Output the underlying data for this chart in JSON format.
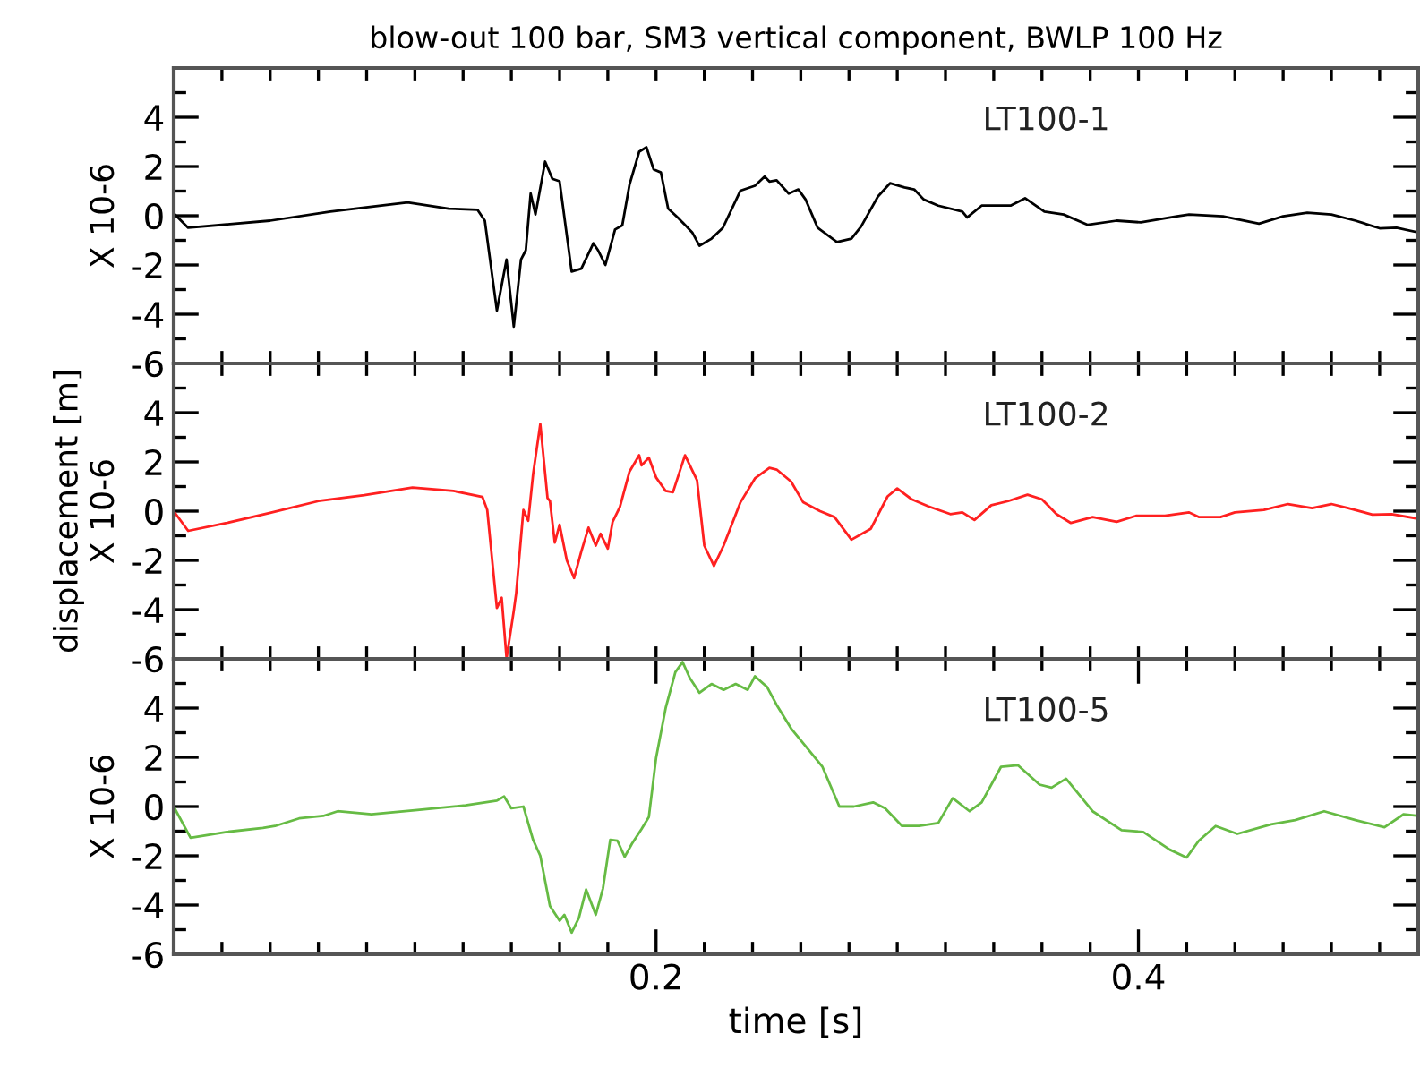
{
  "chart_data": [
    {
      "type": "line",
      "title": "blow-out 100 bar, SM3 vertical component, BWLP 100 Hz",
      "ylabel": "X 10-6",
      "tick_labels": "y",
      "xlim": [
        0,
        0.516
      ],
      "ylim": [
        -6,
        6
      ],
      "xticks": [
        {
          "value": 0.02,
          "label": null
        },
        {
          "value": 0.04,
          "label": null
        },
        {
          "value": 0.06,
          "label": null
        },
        {
          "value": 0.08,
          "label": null
        },
        {
          "value": 0.1,
          "label": null
        },
        {
          "value": 0.12,
          "label": null
        },
        {
          "value": 0.14,
          "label": null
        },
        {
          "value": 0.16,
          "label": null
        },
        {
          "value": 0.18,
          "label": null
        },
        {
          "value": 0.2,
          "label": null
        },
        {
          "value": 0.22,
          "label": null
        },
        {
          "value": 0.24,
          "label": null
        },
        {
          "value": 0.26,
          "label": null
        },
        {
          "value": 0.28,
          "label": null
        },
        {
          "value": 0.3,
          "label": null
        },
        {
          "value": 0.32,
          "label": null
        },
        {
          "value": 0.34,
          "label": null
        },
        {
          "value": 0.36,
          "label": null
        },
        {
          "value": 0.38,
          "label": null
        },
        {
          "value": 0.4,
          "label": null
        },
        {
          "value": 0.42,
          "label": null
        },
        {
          "value": 0.44,
          "label": null
        },
        {
          "value": 0.46,
          "label": null
        },
        {
          "value": 0.48,
          "label": null
        },
        {
          "value": 0.5,
          "label": null
        }
      ],
      "yticks": [
        -6,
        {
          "value": -5,
          "label": null
        },
        -4,
        {
          "value": -3,
          "label": null
        },
        -2,
        {
          "value": -1,
          "label": null
        },
        0,
        {
          "value": 1,
          "label": null
        },
        2,
        {
          "value": 3,
          "label": null
        },
        4,
        {
          "value": 5,
          "label": null
        }
      ],
      "series": [
        {
          "name": "LT100-1",
          "color": "#000000",
          "x": [
            0,
            0.006,
            0.04,
            0.065,
            0.097,
            0.114,
            0.126,
            0.129,
            0.134,
            0.138,
            0.141,
            0.144,
            0.146,
            0.148,
            0.15,
            0.154,
            0.157,
            0.16,
            0.165,
            0.169,
            0.174,
            0.176,
            0.179,
            0.183,
            0.186,
            0.189,
            0.193,
            0.196,
            0.199,
            0.202,
            0.205,
            0.209,
            0.215,
            0.218,
            0.223,
            0.2277,
            0.235,
            0.241,
            0.245,
            0.247,
            0.25,
            0.255,
            0.259,
            0.262,
            0.267,
            0.275,
            0.281,
            0.285,
            0.292,
            0.297,
            0.303,
            0.307,
            0.311,
            0.317,
            0.327,
            0.329,
            0.335,
            0.347,
            0.353,
            0.361,
            0.369,
            0.379,
            0.391,
            0.401,
            0.416,
            0.421,
            0.435,
            0.45,
            0.46,
            0.47,
            0.48,
            0.49,
            0.5,
            0.507,
            0.516
          ],
          "values": [
            0.1,
            -0.49,
            -0.2,
            0.17,
            0.54,
            0.29,
            0.24,
            -0.2,
            -3.85,
            -1.78,
            -4.5,
            -1.78,
            -1.4,
            0.9,
            0.05,
            2.2,
            1.5,
            1.4,
            -2.27,
            -2.15,
            -1.12,
            -1.41,
            -2.0,
            -0.56,
            -0.39,
            1.27,
            2.6,
            2.78,
            1.88,
            1.76,
            0.29,
            -0.07,
            -0.68,
            -1.22,
            -0.93,
            -0.49,
            1.02,
            1.22,
            1.59,
            1.39,
            1.44,
            0.9,
            1.07,
            0.66,
            -0.49,
            -1.07,
            -0.93,
            -0.44,
            0.78,
            1.32,
            1.15,
            1.07,
            0.66,
            0.41,
            0.17,
            -0.07,
            0.41,
            0.41,
            0.71,
            0.17,
            0.05,
            -0.37,
            -0.2,
            -0.27,
            -0.02,
            0.05,
            -0.02,
            -0.32,
            -0.02,
            0.12,
            0.05,
            -0.2,
            -0.51,
            -0.49,
            -0.68
          ]
        }
      ]
    },
    {
      "type": "line",
      "ylabel": "displacement [m]\nX 10-6",
      "tick_labels": "y",
      "xlim": [
        0,
        0.516
      ],
      "ylim": [
        -6,
        6
      ],
      "xticks": [
        {
          "value": 0.02,
          "label": null
        },
        {
          "value": 0.04,
          "label": null
        },
        {
          "value": 0.06,
          "label": null
        },
        {
          "value": 0.08,
          "label": null
        },
        {
          "value": 0.1,
          "label": null
        },
        {
          "value": 0.12,
          "label": null
        },
        {
          "value": 0.14,
          "label": null
        },
        {
          "value": 0.16,
          "label": null
        },
        {
          "value": 0.18,
          "label": null
        },
        {
          "value": 0.2,
          "label": null
        },
        {
          "value": 0.22,
          "label": null
        },
        {
          "value": 0.24,
          "label": null
        },
        {
          "value": 0.26,
          "label": null
        },
        {
          "value": 0.28,
          "label": null
        },
        {
          "value": 0.3,
          "label": null
        },
        {
          "value": 0.32,
          "label": null
        },
        {
          "value": 0.34,
          "label": null
        },
        {
          "value": 0.36,
          "label": null
        },
        {
          "value": 0.38,
          "label": null
        },
        {
          "value": 0.4,
          "label": null
        },
        {
          "value": 0.42,
          "label": null
        },
        {
          "value": 0.44,
          "label": null
        },
        {
          "value": 0.46,
          "label": null
        },
        {
          "value": 0.48,
          "label": null
        },
        {
          "value": 0.5,
          "label": null
        }
      ],
      "yticks": [
        -6,
        {
          "value": -5,
          "label": null
        },
        -4,
        {
          "value": -3,
          "label": null
        },
        -2,
        {
          "value": -1,
          "label": null
        },
        0,
        {
          "value": 1,
          "label": null
        },
        2,
        {
          "value": 3,
          "label": null
        },
        4,
        {
          "value": 5,
          "label": null
        }
      ],
      "series": [
        {
          "name": "LT100-2",
          "color": "#ff2020",
          "x": [
            0,
            0.006,
            0.022,
            0.04,
            0.06,
            0.079,
            0.099,
            0.116,
            0.128,
            0.13,
            0.134,
            0.136,
            0.138,
            0.141,
            0.142,
            0.145,
            0.147,
            0.149,
            0.152,
            0.155,
            0.156,
            0.158,
            0.16,
            0.163,
            0.166,
            0.169,
            0.172,
            0.175,
            0.177,
            0.18,
            0.182,
            0.185,
            0.189,
            0.193,
            0.194,
            0.197,
            0.2,
            0.204,
            0.207,
            0.212,
            0.217,
            0.22,
            0.224,
            0.228,
            0.235,
            0.241,
            0.247,
            0.25,
            0.256,
            0.261,
            0.268,
            0.274,
            0.281,
            0.289,
            0.296,
            0.3,
            0.306,
            0.313,
            0.322,
            0.327,
            0.332,
            0.339,
            0.346,
            0.354,
            0.36,
            0.366,
            0.372,
            0.381,
            0.391,
            0.399,
            0.411,
            0.421,
            0.425,
            0.434,
            0.44,
            0.452,
            0.462,
            0.472,
            0.48,
            0.487,
            0.497,
            0.505,
            0.516
          ],
          "values": [
            0,
            -0.8,
            -0.48,
            -0.07,
            0.41,
            0.65,
            0.96,
            0.82,
            0.58,
            0.05,
            -3.93,
            -3.52,
            -5.98,
            -4.05,
            -3.33,
            0.05,
            -0.39,
            1.49,
            3.54,
            0.53,
            0.41,
            -1.28,
            -0.55,
            -2.0,
            -2.72,
            -1.64,
            -0.67,
            -1.4,
            -0.92,
            -1.52,
            -0.43,
            0.17,
            1.61,
            2.27,
            1.86,
            2.17,
            1.37,
            0.82,
            0.77,
            2.27,
            1.25,
            -1.4,
            -2.22,
            -1.4,
            0.36,
            1.33,
            1.76,
            1.69,
            1.2,
            0.36,
            0,
            -0.24,
            -1.16,
            -0.72,
            0.6,
            0.92,
            0.48,
            0.19,
            -0.12,
            -0.05,
            -0.36,
            0.24,
            0.41,
            0.67,
            0.48,
            -0.12,
            -0.48,
            -0.24,
            -0.43,
            -0.19,
            -0.19,
            -0.05,
            -0.24,
            -0.24,
            -0.05,
            0.05,
            0.29,
            0.12,
            0.29,
            0.12,
            -0.14,
            -0.12,
            -0.31
          ]
        }
      ]
    },
    {
      "type": "line",
      "xlabel": "time [s]",
      "ylabel": "X 10-6",
      "xlim": [
        0,
        0.516
      ],
      "ylim": [
        -6,
        6
      ],
      "xticks": [
        {
          "value": 0.02,
          "label": null
        },
        {
          "value": 0.04,
          "label": null
        },
        {
          "value": 0.06,
          "label": null
        },
        {
          "value": 0.08,
          "label": null
        },
        {
          "value": 0.1,
          "label": null
        },
        {
          "value": 0.12,
          "label": null
        },
        {
          "value": 0.14,
          "label": null
        },
        {
          "value": 0.16,
          "label": null
        },
        {
          "value": 0.18,
          "label": null
        },
        0.2,
        {
          "value": 0.22,
          "label": null
        },
        {
          "value": 0.24,
          "label": null
        },
        {
          "value": 0.26,
          "label": null
        },
        {
          "value": 0.28,
          "label": null
        },
        {
          "value": 0.3,
          "label": null
        },
        {
          "value": 0.32,
          "label": null
        },
        {
          "value": 0.34,
          "label": null
        },
        {
          "value": 0.36,
          "label": null
        },
        {
          "value": 0.38,
          "label": null
        },
        0.4,
        {
          "value": 0.42,
          "label": null
        },
        {
          "value": 0.44,
          "label": null
        },
        {
          "value": 0.46,
          "label": null
        },
        {
          "value": 0.48,
          "label": null
        },
        {
          "value": 0.5,
          "label": null
        }
      ],
      "yticks": [
        -6,
        {
          "value": -5,
          "label": null
        },
        -4,
        {
          "value": -3,
          "label": null
        },
        -2,
        {
          "value": -1,
          "label": null
        },
        0,
        {
          "value": 1,
          "label": null
        },
        2,
        {
          "value": 3,
          "label": null
        },
        4,
        {
          "value": 5,
          "label": null
        }
      ],
      "series": [
        {
          "name": "LT100-5",
          "color": "#66bb44",
          "x": [
            0,
            0.007,
            0.022,
            0.037,
            0.042,
            0.052,
            0.062,
            0.068,
            0.082,
            0.101,
            0.121,
            0.134,
            0.137,
            0.14,
            0.145,
            0.149,
            0.152,
            0.156,
            0.16,
            0.162,
            0.165,
            0.168,
            0.171,
            0.175,
            0.178,
            0.181,
            0.184,
            0.187,
            0.19,
            0.194,
            0.197,
            0.2,
            0.204,
            0.208,
            0.211,
            0.214,
            0.218,
            0.223,
            0.228,
            0.233,
            0.238,
            0.241,
            0.246,
            0.25,
            0.256,
            0.264,
            0.269,
            0.276,
            0.282,
            0.29,
            0.295,
            0.302,
            0.309,
            0.317,
            0.323,
            0.33,
            0.335,
            0.343,
            0.35,
            0.359,
            0.364,
            0.37,
            0.381,
            0.393,
            0.402,
            0.413,
            0.42,
            0.425,
            0.432,
            0.441,
            0.455,
            0.465,
            0.477,
            0.49,
            0.502,
            0.51,
            0.516
          ],
          "values": [
            0,
            -1.27,
            -1.03,
            -0.87,
            -0.79,
            -0.48,
            -0.38,
            -0.19,
            -0.31,
            -0.14,
            0.05,
            0.24,
            0.41,
            -0.07,
            0,
            -1.35,
            -2.0,
            -4.04,
            -4.64,
            -4.4,
            -5.12,
            -4.52,
            -3.37,
            -4.4,
            -3.32,
            -1.35,
            -1.39,
            -2.04,
            -1.51,
            -0.91,
            -0.43,
            1.97,
            4.01,
            5.46,
            5.87,
            5.22,
            4.62,
            4.98,
            4.74,
            4.98,
            4.74,
            5.29,
            4.86,
            4.13,
            3.17,
            2.21,
            1.61,
            0,
            0,
            0.17,
            -0.07,
            -0.79,
            -0.79,
            -0.67,
            0.34,
            -0.19,
            0.17,
            1.61,
            1.68,
            0.89,
            0.77,
            1.13,
            -0.19,
            -0.96,
            -1.03,
            -1.75,
            -2.07,
            -1.39,
            -0.79,
            -1.11,
            -0.72,
            -0.55,
            -0.19,
            -0.55,
            -0.84,
            -0.31,
            -0.38
          ]
        }
      ]
    }
  ]
}
